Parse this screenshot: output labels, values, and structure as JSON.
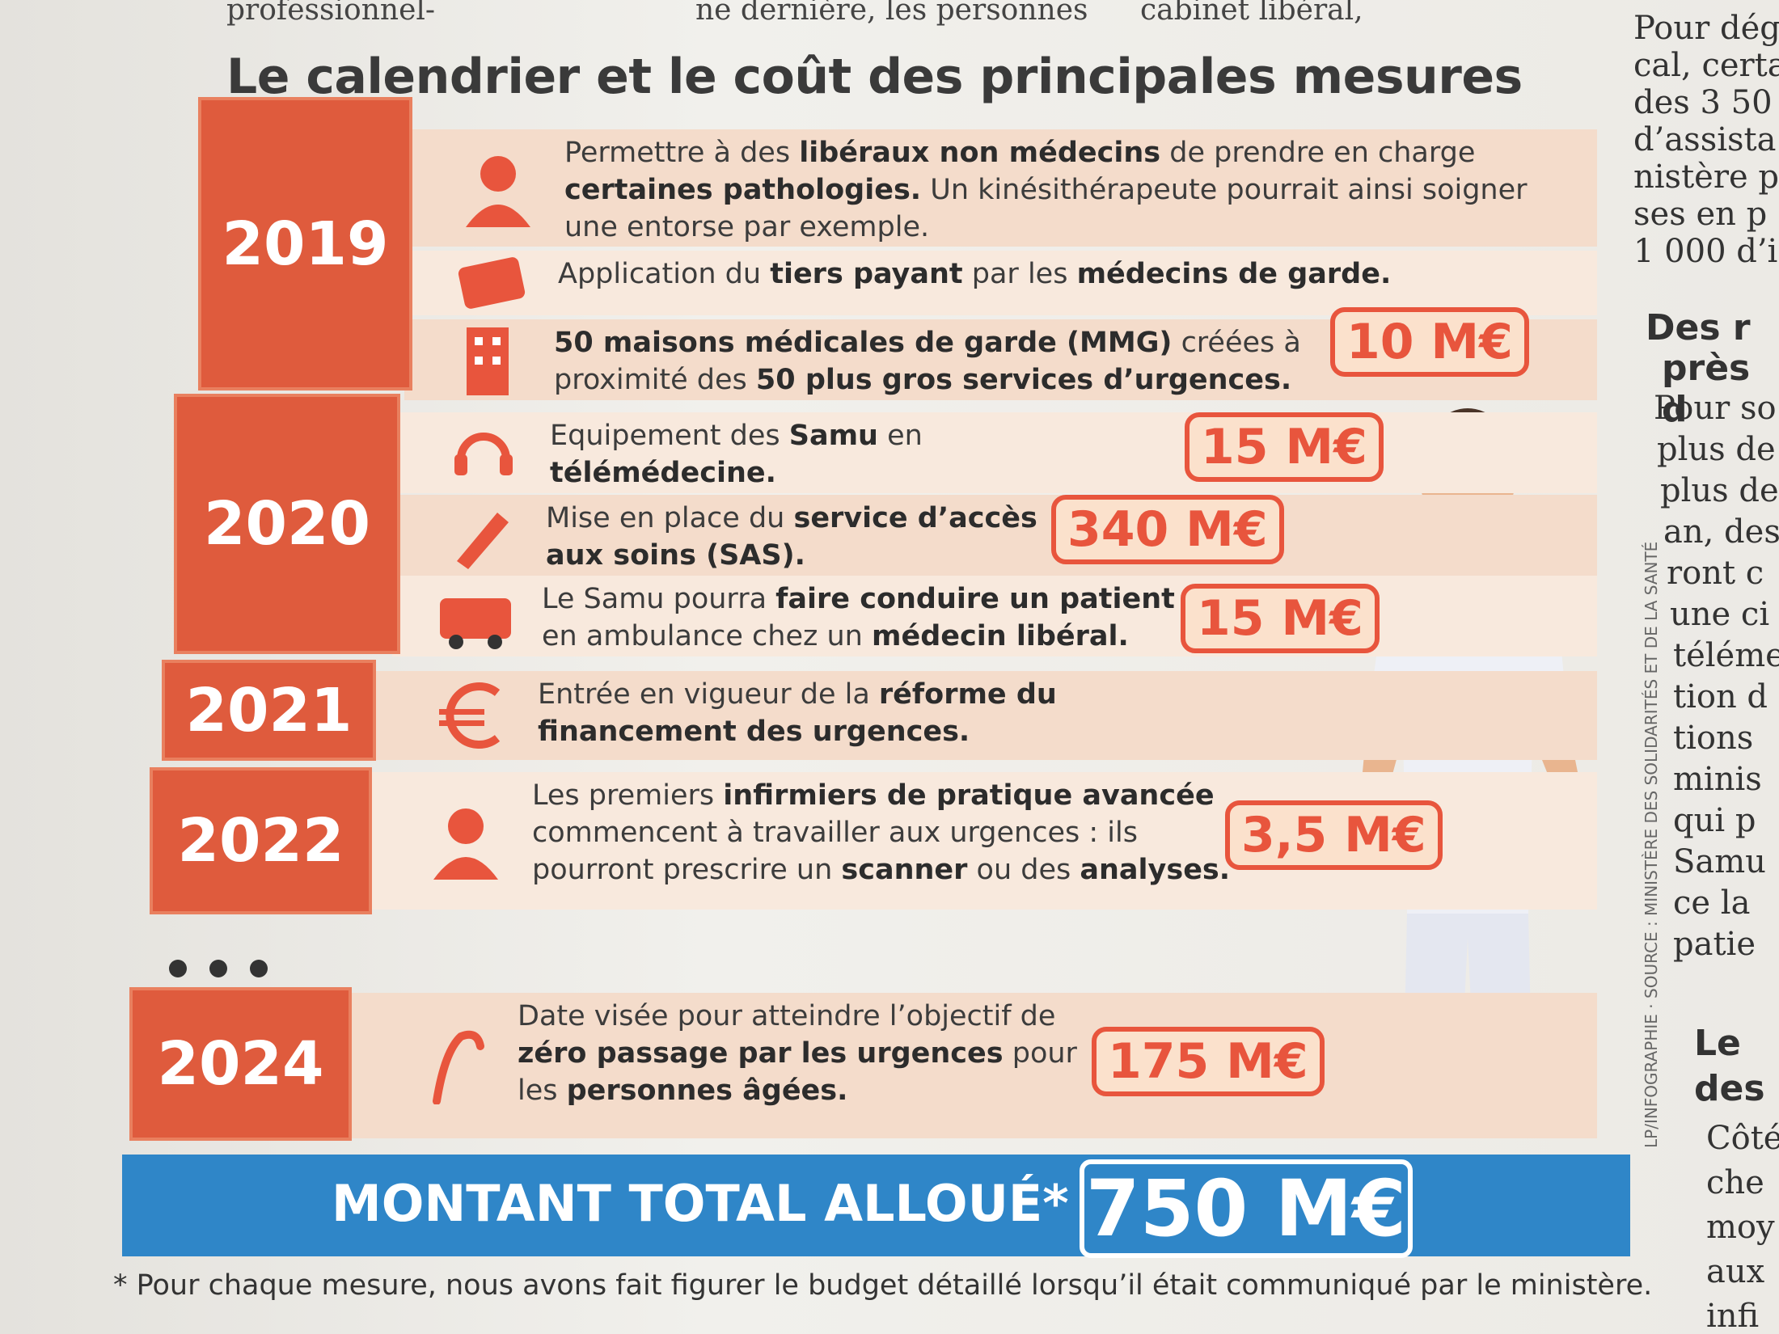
{
  "top_fragments": [
    "professionnel-",
    "ne dernière, les personnes",
    "cabinet libéral,"
  ],
  "title": "Le calendrier et le coût des principales mesures",
  "periods": [
    {
      "year": "2019",
      "items": [
        {
          "segments": [
            {
              "normal": "Permettre à des "
            },
            {
              "bold": "libéraux non médecins"
            },
            {
              "normal": " de prendre en charge "
            },
            {
              "bold": "certaines pathologies."
            },
            {
              "normal": " Un kinésithérapeute pourrait ainsi soigner une entorse par exemple."
            }
          ]
        },
        {
          "segments": [
            {
              "normal": "Application du "
            },
            {
              "bold": "tiers payant"
            },
            {
              "normal": " par les "
            },
            {
              "bold": "médecins de garde."
            }
          ]
        },
        {
          "segments": [
            {
              "bold": "50 maisons médicales de garde (MMG)"
            },
            {
              "normal": " créées à proximité des "
            },
            {
              "bold": "50 plus gros services d’urgences."
            }
          ],
          "cost": "10 M€"
        }
      ]
    },
    {
      "year": "2020",
      "items": [
        {
          "segments": [
            {
              "normal": "Equipement des "
            },
            {
              "bold": "Samu"
            },
            {
              "normal": " en "
            },
            {
              "bold": "télémédecine."
            }
          ],
          "cost": "15 M€"
        },
        {
          "segments": [
            {
              "normal": "Mise en place du "
            },
            {
              "bold": "service d’accès aux soins (SAS)."
            }
          ],
          "cost": "340 M€"
        },
        {
          "segments": [
            {
              "normal": "Le Samu pourra "
            },
            {
              "bold": "faire conduire un patient"
            },
            {
              "normal": " en ambulance chez un "
            },
            {
              "bold": "médecin libéral."
            }
          ],
          "cost": "15 M€"
        }
      ]
    },
    {
      "year": "2021",
      "items": [
        {
          "segments": [
            {
              "normal": "Entrée en vigueur de la "
            },
            {
              "bold": "réforme du financement des urgences."
            }
          ]
        }
      ]
    },
    {
      "year": "2022",
      "items": [
        {
          "segments": [
            {
              "normal": "Les premiers "
            },
            {
              "bold": "infirmiers de pratique avancée"
            },
            {
              "normal": " commencent à travailler aux urgences : ils pourront prescrire un "
            },
            {
              "bold": "scanner"
            },
            {
              "normal": " ou des "
            },
            {
              "bold": "analyses."
            }
          ],
          "cost": "3,5 M€"
        }
      ]
    },
    {
      "year": "2024",
      "items": [
        {
          "segments": [
            {
              "normal": "Date visée pour atteindre l’objectif de "
            },
            {
              "bold": "zéro passage par les urgences"
            },
            {
              "normal": " pour les "
            },
            {
              "bold": "personnes âgées."
            }
          ],
          "cost": "175 M€"
        }
      ]
    }
  ],
  "total": {
    "label": "MONTANT TOTAL ALLOUÉ*",
    "amount": "750 M€"
  },
  "footnote": "* Pour chaque mesure, nous avons fait figurer le budget détaillé lorsqu’il était communiqué par le ministère.",
  "credit": "LP/INFOGRAPHIE · SOURCE : MINISTÈRE DES SOLIDARITÉS ET DE LA SANTÉ",
  "side_column": {
    "lines_a": [
      "Pour déga",
      "cal, certa",
      "des 3 50",
      "d’assista",
      "nistère p",
      "ses en p",
      "1 000 d’i"
    ],
    "heading_b": [
      "Des r",
      "près d"
    ],
    "lines_b": [
      "Pour so",
      "plus de",
      "plus de",
      "an, des",
      "ront c",
      "une ci",
      "téléme",
      "tion d",
      "tions",
      "minis",
      "qui p",
      "Samu",
      "ce la",
      "patie"
    ],
    "heading_c": [
      "Le",
      "des"
    ],
    "lines_c": [
      "Côté",
      "che",
      "moy",
      "aux",
      "infi"
    ]
  }
}
